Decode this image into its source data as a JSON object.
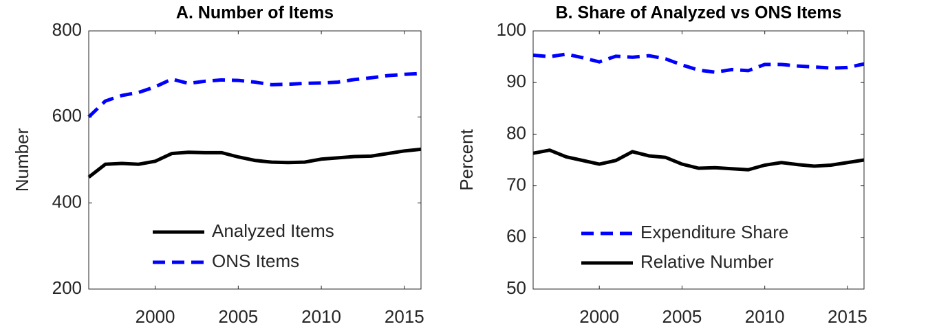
{
  "chart_data": [
    {
      "type": "line",
      "title": "A. Number of Items",
      "ylabel": "Number",
      "x": [
        1996,
        1997,
        1998,
        1999,
        2000,
        2001,
        2002,
        2003,
        2004,
        2005,
        2006,
        2007,
        2008,
        2009,
        2010,
        2011,
        2012,
        2013,
        2014,
        2015,
        2016
      ],
      "xlim": [
        1996,
        2016
      ],
      "xticks": [
        2000,
        2005,
        2010,
        2015
      ],
      "ylim": [
        200,
        800
      ],
      "yticks": [
        200,
        400,
        600,
        800
      ],
      "series": [
        {
          "name": "Analyzed Items",
          "color": "#000000",
          "dash": "solid",
          "values": [
            460,
            490,
            492,
            490,
            497,
            515,
            518,
            517,
            517,
            507,
            499,
            495,
            494,
            495,
            502,
            505,
            508,
            509,
            515,
            521,
            525
          ]
        },
        {
          "name": "ONS Items",
          "color": "#0000ff",
          "dash": "dashed",
          "values": [
            600,
            637,
            650,
            657,
            670,
            688,
            678,
            683,
            686,
            685,
            681,
            675,
            676,
            678,
            679,
            681,
            687,
            691,
            696,
            699,
            701
          ]
        }
      ]
    },
    {
      "type": "line",
      "title": "B. Share of Analyzed vs ONS Items",
      "ylabel": "Percent",
      "x": [
        1996,
        1997,
        1998,
        1999,
        2000,
        2001,
        2002,
        2003,
        2004,
        2005,
        2006,
        2007,
        2008,
        2009,
        2010,
        2011,
        2012,
        2013,
        2014,
        2015,
        2016
      ],
      "xlim": [
        1996,
        2016
      ],
      "xticks": [
        2000,
        2005,
        2010,
        2015
      ],
      "ylim": [
        50,
        100
      ],
      "yticks": [
        50,
        60,
        70,
        80,
        90,
        100
      ],
      "series": [
        {
          "name": "Expenditure Share",
          "color": "#0000ff",
          "dash": "dashed",
          "values": [
            95.3,
            95,
            95.5,
            94.8,
            94,
            95.1,
            94.9,
            95.2,
            94.6,
            93.4,
            92.4,
            92,
            92.5,
            92.3,
            93.5,
            93.5,
            93.2,
            93,
            92.8,
            92.9,
            93.6
          ]
        },
        {
          "name": "Relative Number",
          "color": "#000000",
          "dash": "solid",
          "values": [
            76.3,
            76.9,
            75.6,
            74.9,
            74.2,
            74.9,
            76.6,
            75.8,
            75.5,
            74.2,
            73.4,
            73.5,
            73.3,
            73.1,
            74,
            74.5,
            74.1,
            73.8,
            74,
            74.5,
            75
          ]
        }
      ]
    }
  ]
}
